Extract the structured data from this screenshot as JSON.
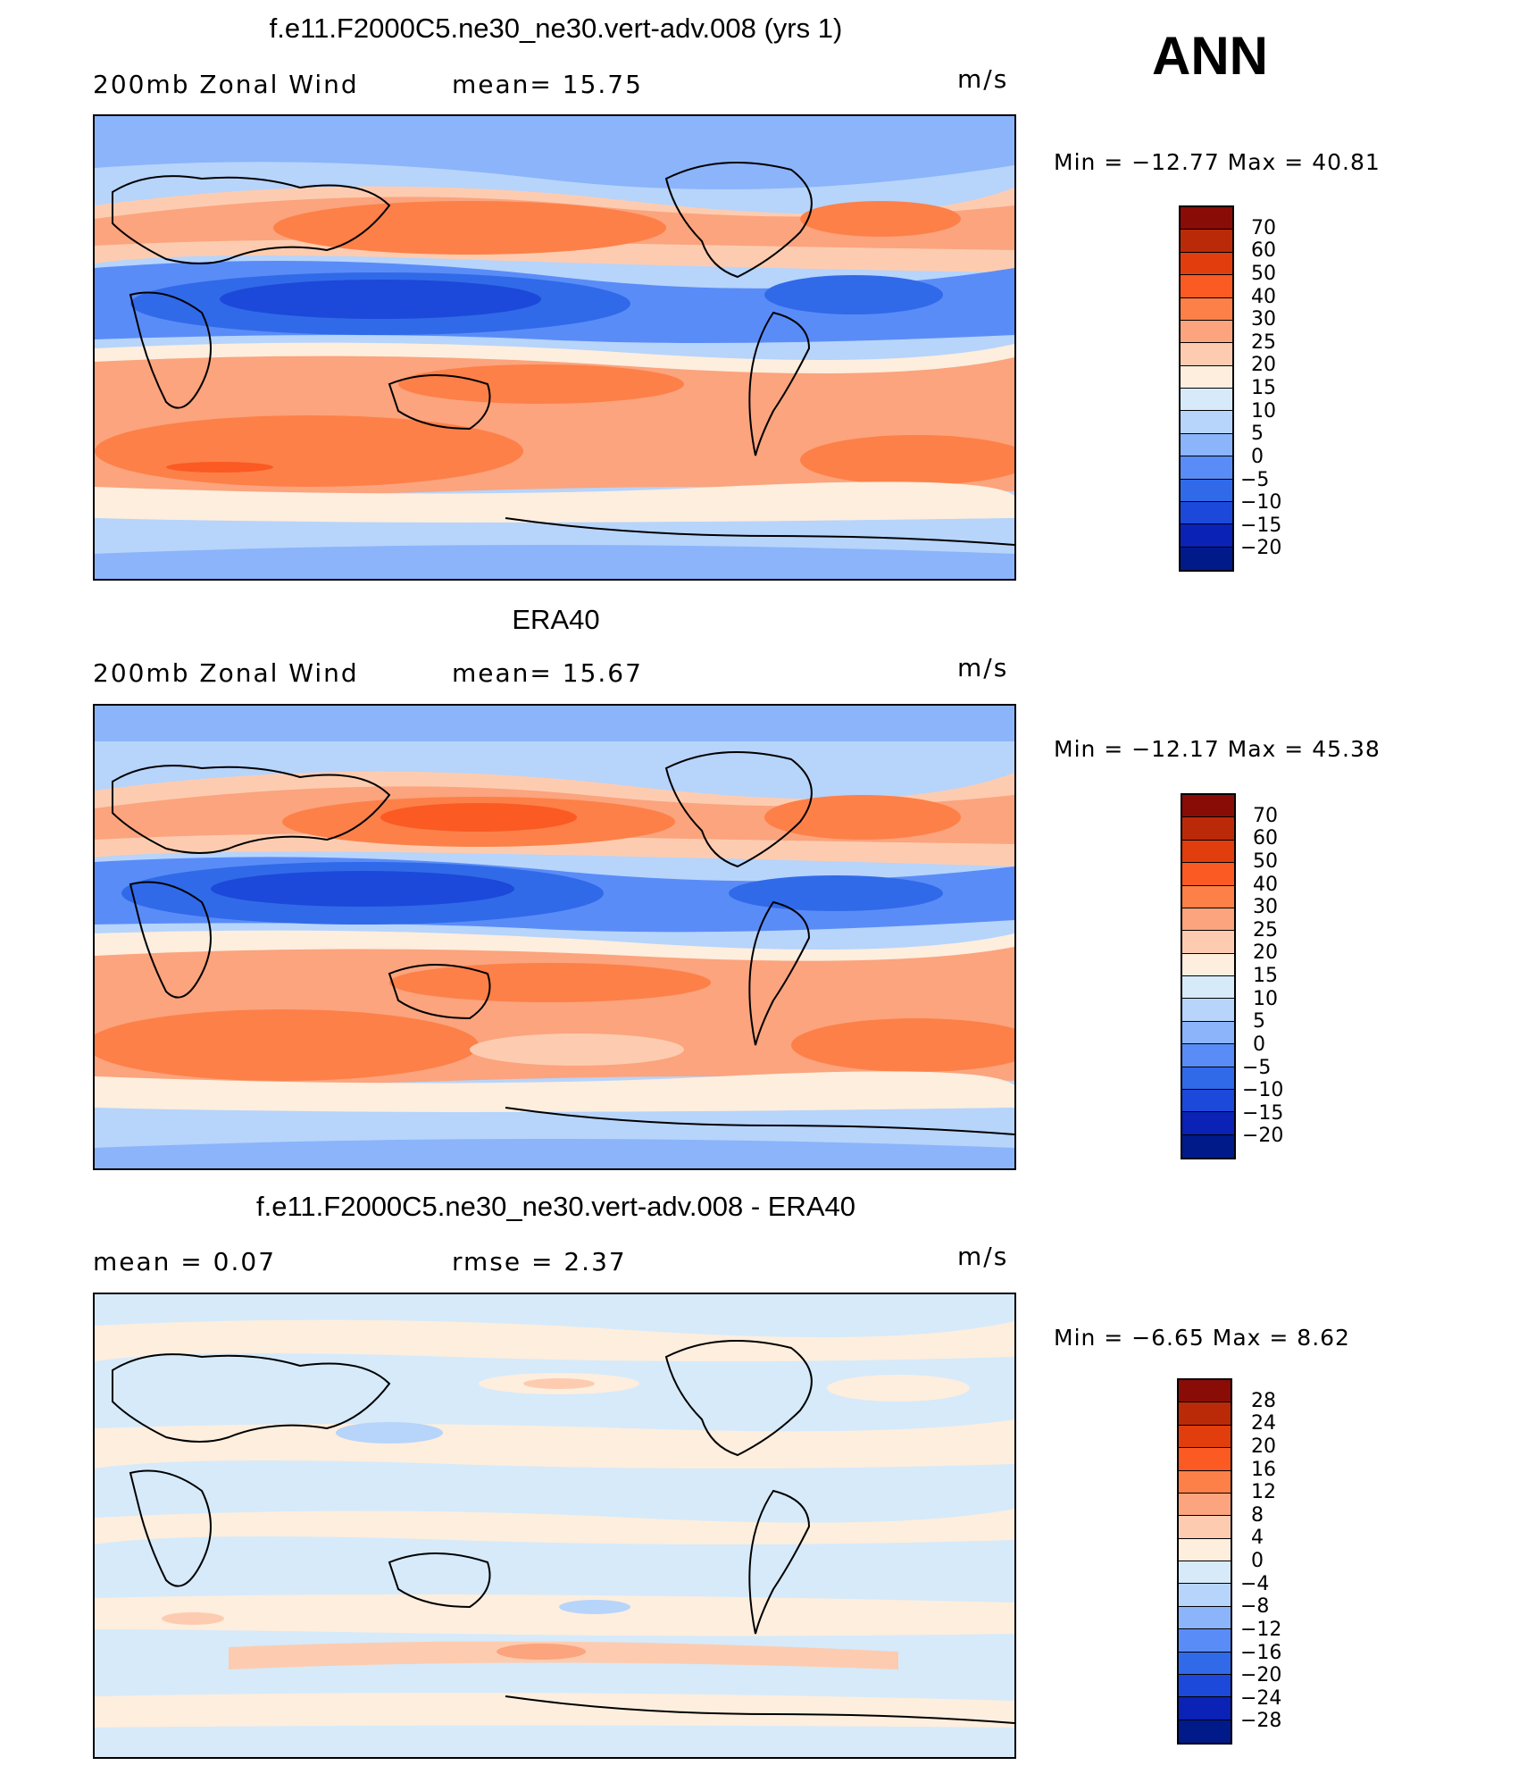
{
  "season": "ANN",
  "palettes": {
    "model": [
      "#8a0c07",
      "#bb2a08",
      "#e23d0c",
      "#fb5a22",
      "#fd8049",
      "#fba47e",
      "#fdccb0",
      "#fdeede",
      "#d6eafa",
      "#b7d4fb",
      "#8bb4fa",
      "#5a8cf8",
      "#306ae9",
      "#1c49d9",
      "#0a22b5",
      "#011a8a"
    ],
    "diff": [
      "#8a0c07",
      "#bb2a08",
      "#e23d0c",
      "#fb5a22",
      "#fd8049",
      "#fba47e",
      "#fdccb0",
      "#fdeede",
      "#d6eafa",
      "#b7d4fb",
      "#8bb4fa",
      "#5a8cf8",
      "#306ae9",
      "#1c49d9",
      "#0a22b5",
      "#011a8a"
    ]
  },
  "panels": [
    {
      "title": "f.e11.F2000C5.ne30_ne30.vert-adv.008 (yrs 1)",
      "left_label": "200mb  Zonal  Wind",
      "mid_label": "mean=   15.75",
      "units": "m/s",
      "minmax": "Min  =  −12.77  Max  =    40.81",
      "levels": [
        "70",
        "60",
        "50",
        "40",
        "30",
        "25",
        "20",
        "15",
        "10",
        "5",
        "0",
        "−5",
        "−10",
        "−15",
        "−20"
      ]
    },
    {
      "title": "ERA40",
      "left_label": "200mb  Zonal  Wind",
      "mid_label": "mean=   15.67",
      "units": "m/s",
      "minmax": "Min  =  −12.17  Max  =    45.38",
      "levels": [
        "70",
        "60",
        "50",
        "40",
        "30",
        "25",
        "20",
        "15",
        "10",
        "5",
        "0",
        "−5",
        "−10",
        "−15",
        "−20"
      ]
    },
    {
      "title": "f.e11.F2000C5.ne30_ne30.vert-adv.008 - ERA40",
      "left_label": "mean  =     0.07",
      "mid_label": "rmse  =     2.37",
      "units": "m/s",
      "minmax": "Min  =    −6.65  Max  =      8.62",
      "levels": [
        "28",
        "24",
        "20",
        "16",
        "12",
        "8",
        "4",
        "0",
        "−4",
        "−8",
        "−12",
        "−16",
        "−20",
        "−24",
        "−28"
      ]
    }
  ]
}
